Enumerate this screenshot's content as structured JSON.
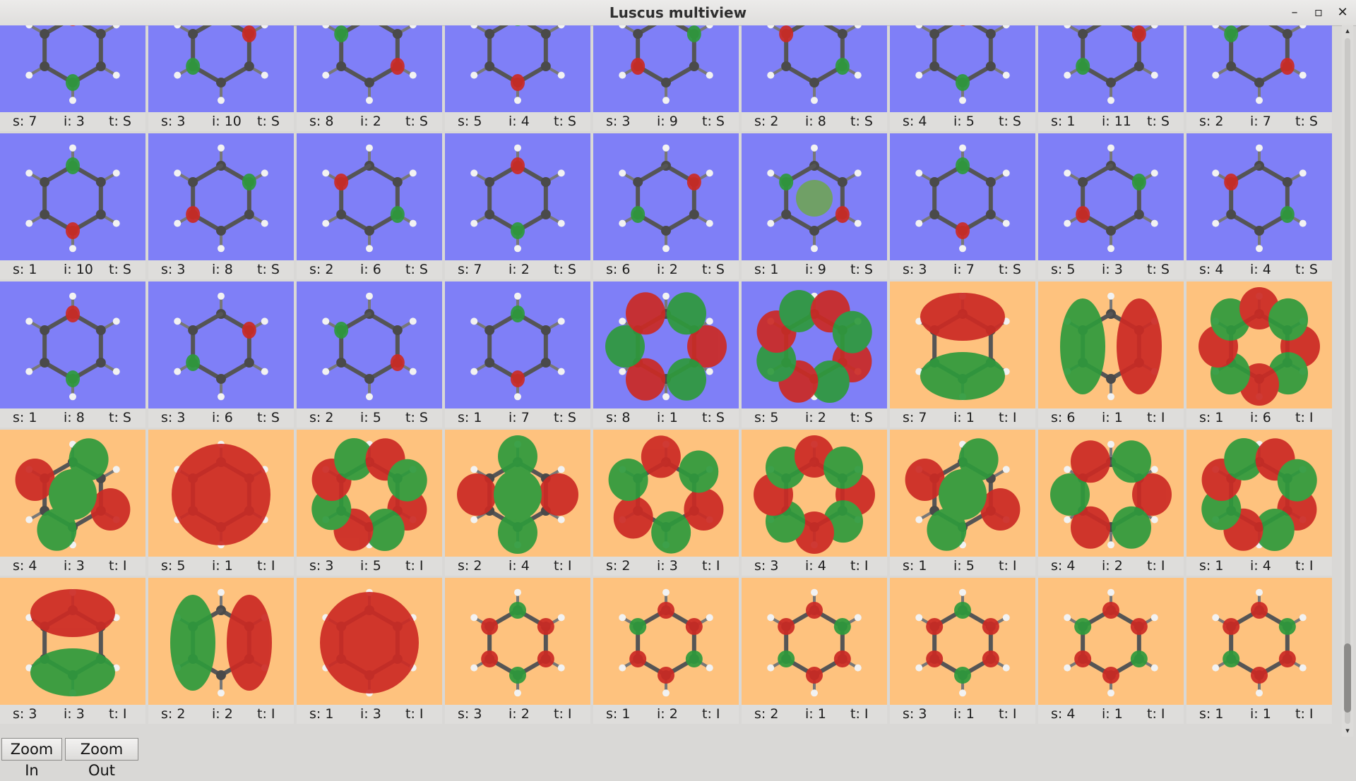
{
  "window": {
    "title": "Luscus multiview",
    "controls": [
      "–",
      "▫",
      "✕"
    ]
  },
  "colors": {
    "singlet_bg": "#7f7ff7",
    "triplet_bg": "#fec27e",
    "positive_lobe": "#cc2a24",
    "negative_lobe": "#2e9a3c"
  },
  "tiles": [
    [
      {
        "s": "7",
        "i": "3",
        "t": "S"
      },
      {
        "s": "3",
        "i": "10",
        "t": "S"
      },
      {
        "s": "8",
        "i": "2",
        "t": "S"
      },
      {
        "s": "5",
        "i": "4",
        "t": "S"
      },
      {
        "s": "3",
        "i": "9",
        "t": "S"
      },
      {
        "s": "2",
        "i": "8",
        "t": "S"
      },
      {
        "s": "4",
        "i": "5",
        "t": "S"
      },
      {
        "s": "1",
        "i": "11",
        "t": "S"
      },
      {
        "s": "2",
        "i": "7",
        "t": "S"
      }
    ],
    [
      {
        "s": "1",
        "i": "10",
        "t": "S"
      },
      {
        "s": "3",
        "i": "8",
        "t": "S"
      },
      {
        "s": "2",
        "i": "6",
        "t": "S"
      },
      {
        "s": "7",
        "i": "2",
        "t": "S"
      },
      {
        "s": "6",
        "i": "2",
        "t": "S"
      },
      {
        "s": "1",
        "i": "9",
        "t": "S"
      },
      {
        "s": "3",
        "i": "7",
        "t": "S"
      },
      {
        "s": "5",
        "i": "3",
        "t": "S"
      },
      {
        "s": "4",
        "i": "4",
        "t": "S"
      }
    ],
    [
      {
        "s": "1",
        "i": "8",
        "t": "S"
      },
      {
        "s": "3",
        "i": "6",
        "t": "S"
      },
      {
        "s": "2",
        "i": "5",
        "t": "S"
      },
      {
        "s": "1",
        "i": "7",
        "t": "S"
      },
      {
        "s": "8",
        "i": "1",
        "t": "S"
      },
      {
        "s": "5",
        "i": "2",
        "t": "S"
      },
      {
        "s": "7",
        "i": "1",
        "t": "I"
      },
      {
        "s": "6",
        "i": "1",
        "t": "I"
      },
      {
        "s": "1",
        "i": "6",
        "t": "I"
      }
    ],
    [
      {
        "s": "4",
        "i": "3",
        "t": "I"
      },
      {
        "s": "5",
        "i": "1",
        "t": "I"
      },
      {
        "s": "3",
        "i": "5",
        "t": "I"
      },
      {
        "s": "2",
        "i": "4",
        "t": "I"
      },
      {
        "s": "2",
        "i": "3",
        "t": "I"
      },
      {
        "s": "3",
        "i": "4",
        "t": "I"
      },
      {
        "s": "1",
        "i": "5",
        "t": "I"
      },
      {
        "s": "4",
        "i": "2",
        "t": "I"
      },
      {
        "s": "1",
        "i": "4",
        "t": "I"
      }
    ],
    [
      {
        "s": "3",
        "i": "3",
        "t": "I"
      },
      {
        "s": "2",
        "i": "2",
        "t": "I"
      },
      {
        "s": "1",
        "i": "3",
        "t": "I"
      },
      {
        "s": "3",
        "i": "2",
        "t": "I"
      },
      {
        "s": "1",
        "i": "2",
        "t": "I"
      },
      {
        "s": "2",
        "i": "1",
        "t": "I"
      },
      {
        "s": "3",
        "i": "1",
        "t": "I"
      },
      {
        "s": "4",
        "i": "1",
        "t": "I"
      },
      {
        "s": "1",
        "i": "1",
        "t": "I"
      }
    ]
  ],
  "caption_prefix": {
    "s": "s: ",
    "i": "i: ",
    "t": "t: "
  },
  "scroll": {
    "position": "bottom"
  },
  "buttons": {
    "zoom_in": "Zoom In",
    "zoom_out": "Zoom Out"
  }
}
